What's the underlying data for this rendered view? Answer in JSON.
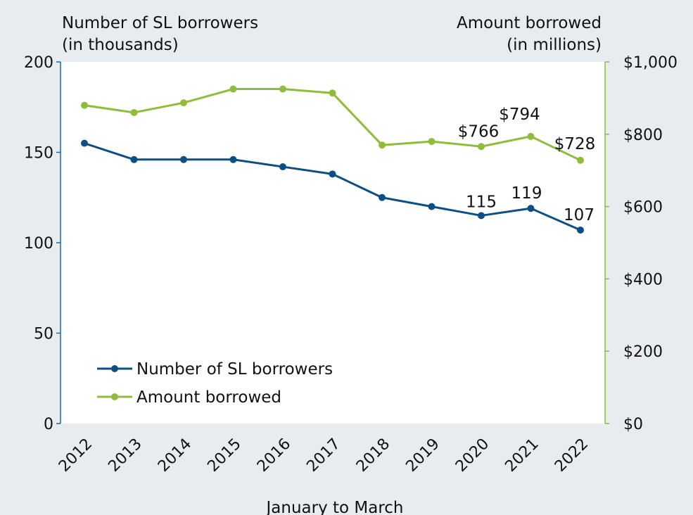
{
  "chart_data": {
    "type": "line",
    "x": [
      "2012",
      "2013",
      "2014",
      "2015",
      "2016",
      "2017",
      "2018",
      "2019",
      "2020",
      "2021",
      "2022"
    ],
    "xlabel": "January to March",
    "y_left": {
      "title_lines": [
        "Number of SL borrowers",
        "(in thousands)"
      ],
      "ylim": [
        0,
        200
      ],
      "ticks": [
        0,
        50,
        100,
        150,
        200
      ],
      "tick_labels": [
        "0",
        "50",
        "100",
        "150",
        "200"
      ],
      "color": "#1f6aa5"
    },
    "y_right": {
      "title_lines": [
        "Amount borrowed",
        "(in millions)"
      ],
      "ylim": [
        0,
        1000
      ],
      "ticks": [
        0,
        200,
        400,
        600,
        800,
        1000
      ],
      "tick_labels": [
        "$0",
        "$200",
        "$400",
        "$600",
        "$800",
        "$1,000"
      ],
      "color": "#8fbc3a"
    },
    "series": [
      {
        "name": "Number of SL borrowers",
        "axis": "left",
        "color": "#0d4f85",
        "values": [
          155,
          146,
          146,
          146,
          142,
          138,
          125,
          120,
          115,
          119,
          107
        ],
        "labels": {
          "8": "115",
          "9": "119",
          "10": "107"
        }
      },
      {
        "name": "Amount borrowed",
        "axis": "right",
        "color": "#8fbc3a",
        "values": [
          880,
          860,
          887,
          925,
          925,
          914,
          770,
          780,
          766,
          794,
          728
        ],
        "labels": {
          "8": "$766",
          "9": "$794",
          "10": "$728"
        }
      }
    ],
    "legend": "bottom-left",
    "grid": false
  }
}
